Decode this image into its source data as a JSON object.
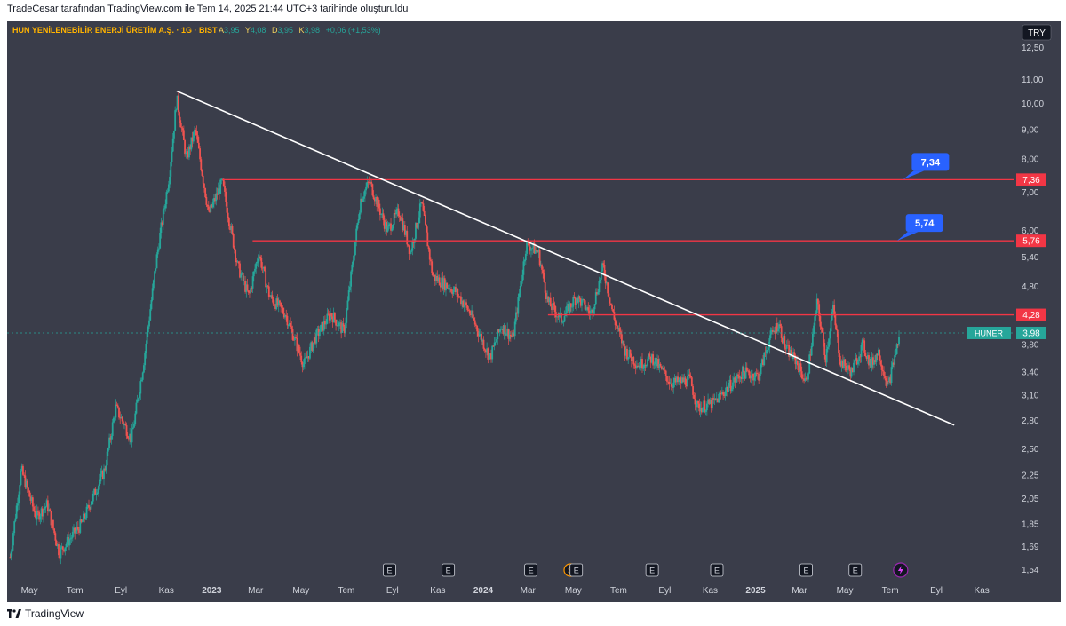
{
  "header": {
    "text": "TradeCesar tarafından TradingView.com ile Tem 14, 2025 21:44 UTC+3 tarihinde oluşturuldu"
  },
  "legend": {
    "title": "HUN YENİLENEBİLİR ENERJİ ÜRETİM A.Ş. · 1G · BIST",
    "o_label": "A",
    "o_value": "3,95",
    "h_label": "Y",
    "h_value": "4,08",
    "l_label": "D",
    "l_value": "3,95",
    "c_label": "K",
    "c_value": "3,98",
    "change": "+0,06 (+1,53%)"
  },
  "currency": "TRY",
  "footer": {
    "brand": "TradingView"
  },
  "colors": {
    "background": "#3a3d4a",
    "up": "#26a69a",
    "down": "#ef5350",
    "line": "#f23645",
    "label": "#2962ff"
  },
  "chart_data": {
    "type": "candlestick",
    "symbol": "HUNER",
    "y_scale": "log",
    "ylim": [
      1.5,
      13.5
    ],
    "y_ticks": [
      "12,50",
      "11,00",
      "10,00",
      "9,00",
      "8,00",
      "7,00",
      "6,00",
      "5,40",
      "4,80",
      "3,80",
      "3,40",
      "3,10",
      "2,80",
      "2,50",
      "2,25",
      "2,05",
      "1,85",
      "1,69",
      "1,54"
    ],
    "x_ticks": [
      "May",
      "Tem",
      "Eyl",
      "Kas",
      "2023",
      "Mar",
      "May",
      "Tem",
      "Eyl",
      "Kas",
      "2024",
      "Mar",
      "May",
      "Tem",
      "Eyl",
      "Kas",
      "2025",
      "Mar",
      "May",
      "Tem",
      "Eyl",
      "Kas"
    ],
    "price_path": [
      [
        "2022-04-05",
        1.62
      ],
      [
        "2022-04-20",
        2.3
      ],
      [
        "2022-05-10",
        1.9
      ],
      [
        "2022-05-25",
        2.0
      ],
      [
        "2022-06-10",
        1.65
      ],
      [
        "2022-07-10",
        1.85
      ],
      [
        "2022-08-10",
        2.3
      ],
      [
        "2022-08-25",
        2.95
      ],
      [
        "2022-09-15",
        2.6
      ],
      [
        "2022-10-01",
        3.5
      ],
      [
        "2022-10-20",
        5.5
      ],
      [
        "2022-11-05",
        7.5
      ],
      [
        "2022-11-15",
        10.2
      ],
      [
        "2022-11-28",
        8.0
      ],
      [
        "2022-12-10",
        9.0
      ],
      [
        "2022-12-28",
        6.4
      ],
      [
        "2023-01-15",
        7.3
      ],
      [
        "2023-02-05",
        5.2
      ],
      [
        "2023-02-20",
        4.6
      ],
      [
        "2023-03-05",
        5.5
      ],
      [
        "2023-03-20",
        4.6
      ],
      [
        "2023-04-10",
        4.3
      ],
      [
        "2023-05-05",
        3.5
      ],
      [
        "2023-05-20",
        3.9
      ],
      [
        "2023-06-10",
        4.3
      ],
      [
        "2023-06-28",
        4.0
      ],
      [
        "2023-07-20",
        6.8
      ],
      [
        "2023-08-01",
        7.3
      ],
      [
        "2023-08-25",
        6.0
      ],
      [
        "2023-09-10",
        6.5
      ],
      [
        "2023-09-25",
        5.5
      ],
      [
        "2023-10-10",
        6.7
      ],
      [
        "2023-10-25",
        5.0
      ],
      [
        "2023-11-25",
        4.7
      ],
      [
        "2023-12-15",
        4.3
      ],
      [
        "2024-01-10",
        3.6
      ],
      [
        "2024-01-25",
        4.1
      ],
      [
        "2024-02-10",
        3.9
      ],
      [
        "2024-02-28",
        5.7
      ],
      [
        "2024-03-15",
        5.5
      ],
      [
        "2024-03-28",
        4.5
      ],
      [
        "2024-04-15",
        4.2
      ],
      [
        "2024-05-05",
        4.6
      ],
      [
        "2024-05-25",
        4.3
      ],
      [
        "2024-06-10",
        5.2
      ],
      [
        "2024-06-25",
        4.2
      ],
      [
        "2024-07-10",
        3.7
      ],
      [
        "2024-07-28",
        3.5
      ],
      [
        "2024-08-15",
        3.6
      ],
      [
        "2024-09-10",
        3.25
      ],
      [
        "2024-10-05",
        3.3
      ],
      [
        "2024-10-15",
        2.95
      ],
      [
        "2024-11-05",
        3.0
      ],
      [
        "2024-11-25",
        3.2
      ],
      [
        "2024-12-15",
        3.4
      ],
      [
        "2025-01-05",
        3.35
      ],
      [
        "2025-01-20",
        3.9
      ],
      [
        "2025-02-01",
        4.15
      ],
      [
        "2025-02-10",
        3.75
      ],
      [
        "2025-02-25",
        3.55
      ],
      [
        "2025-03-10",
        3.25
      ],
      [
        "2025-03-25",
        4.5
      ],
      [
        "2025-04-05",
        3.6
      ],
      [
        "2025-04-15",
        4.4
      ],
      [
        "2025-04-25",
        3.55
      ],
      [
        "2025-05-10",
        3.4
      ],
      [
        "2025-05-25",
        3.8
      ],
      [
        "2025-06-05",
        3.5
      ],
      [
        "2025-06-15",
        3.7
      ],
      [
        "2025-06-28",
        3.2
      ],
      [
        "2025-07-14",
        3.98
      ]
    ],
    "trendline": {
      "from": [
        "2022-11-15",
        10.5
      ],
      "to": [
        "2025-09-25",
        2.75
      ]
    },
    "horizontal_lines": [
      {
        "from": "2023-01-15",
        "price": 7.36,
        "label": "7,36"
      },
      {
        "from": "2023-02-25",
        "price": 5.76,
        "label": "5,76"
      },
      {
        "from": "2024-03-28",
        "price": 4.28,
        "label": "4,28"
      }
    ],
    "callouts": [
      {
        "text": "7,34",
        "anchor": [
          "2025-07-18",
          7.36
        ]
      },
      {
        "text": "5,74",
        "anchor": [
          "2025-07-10",
          5.76
        ]
      }
    ],
    "last_price": {
      "symbol": "HUNER",
      "value": 3.98,
      "label": "3,98"
    },
    "event_markers": [
      {
        "date": "2023-08-28",
        "type": "E"
      },
      {
        "date": "2023-11-15",
        "type": "E"
      },
      {
        "date": "2024-03-05",
        "type": "E"
      },
      {
        "date": "2024-04-27",
        "type": "S"
      },
      {
        "date": "2024-05-05",
        "type": "E"
      },
      {
        "date": "2024-08-15",
        "type": "E"
      },
      {
        "date": "2024-11-10",
        "type": "E"
      },
      {
        "date": "2025-03-10",
        "type": "E"
      },
      {
        "date": "2025-05-15",
        "type": "E"
      },
      {
        "date": "2025-07-15",
        "type": "flash"
      }
    ]
  }
}
